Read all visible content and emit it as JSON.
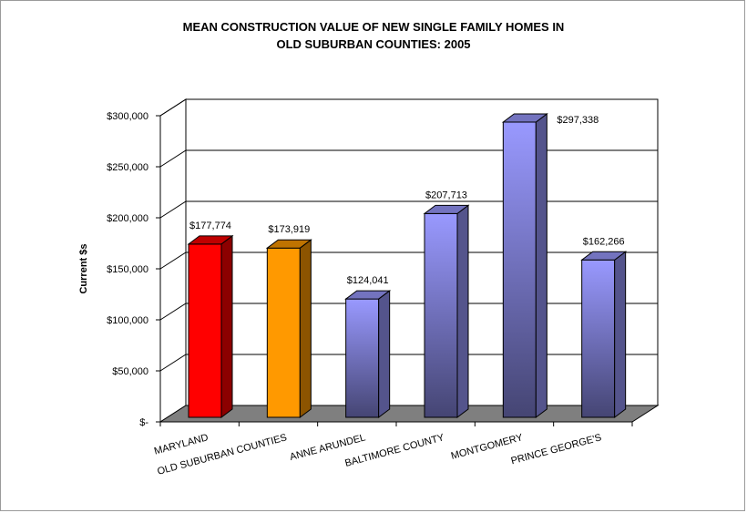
{
  "chart_data": {
    "type": "bar",
    "title_line1": "MEAN CONSTRUCTION VALUE OF NEW SINGLE FAMILY HOMES IN",
    "title_line2": "OLD SUBURBAN COUNTIES:  2005",
    "ylabel": "Current $s",
    "xlabel": "",
    "ylim": [
      0,
      300000
    ],
    "yticks": [
      0,
      50000,
      100000,
      150000,
      200000,
      250000,
      300000
    ],
    "ytick_labels": [
      "$-",
      "$50,000",
      "$100,000",
      "$150,000",
      "$200,000",
      "$250,000",
      "$300,000"
    ],
    "categories": [
      "MARYLAND",
      "OLD SUBURBAN COUNTIES",
      "ANNE ARUNDEL",
      "BALTIMORE COUNTY",
      "MONTGOMERY",
      "PRINCE GEORGE'S"
    ],
    "values": [
      177774,
      173919,
      124041,
      207713,
      297338,
      162266
    ],
    "value_labels": [
      "$177,774",
      "$173,919",
      "$124,041",
      "$207,713",
      "$297,338",
      "$162,266"
    ],
    "bar_colors": [
      "#ff0000",
      "#ff9900",
      "#9999ff",
      "#9999ff",
      "#9999ff",
      "#9999ff"
    ],
    "grid": true,
    "style": "3d"
  }
}
